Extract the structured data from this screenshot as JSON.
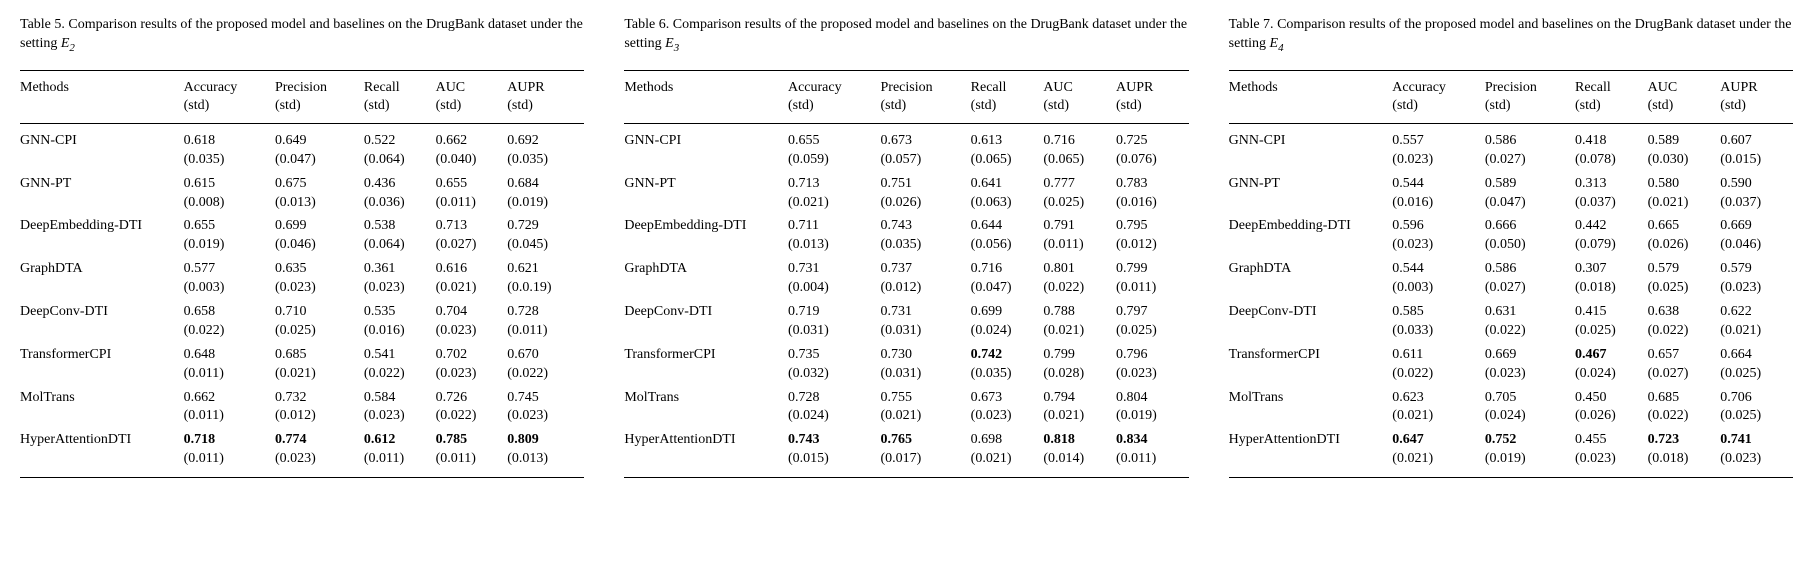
{
  "font_family": "Times New Roman, serif",
  "text_color": "#000000",
  "background_color": "#ffffff",
  "rule_color": "#000000",
  "base_fontsize_pt": 11,
  "columns": [
    "Methods",
    "Accuracy (std)",
    "Precision (std)",
    "Recall (std)",
    "AUC (std)",
    "AUPR (std)"
  ],
  "tables": [
    {
      "number": "Table 5.",
      "caption_text": "Comparison results of the proposed model and baselines on the DrugBank dataset under the setting",
      "setting_base": "E",
      "setting_sub": "2",
      "rows": [
        {
          "method": "GNN-CPI",
          "vals": [
            "0.618",
            "0.649",
            "0.522",
            "0.662",
            "0.692"
          ],
          "stds": [
            "(0.035)",
            "(0.047)",
            "(0.064)",
            "(0.040)",
            "(0.035)"
          ],
          "bold": [
            false,
            false,
            false,
            false,
            false
          ]
        },
        {
          "method": "GNN-PT",
          "vals": [
            "0.615",
            "0.675",
            "0.436",
            "0.655",
            "0.684"
          ],
          "stds": [
            "(0.008)",
            "(0.013)",
            "(0.036)",
            "(0.011)",
            "(0.019)"
          ],
          "bold": [
            false,
            false,
            false,
            false,
            false
          ]
        },
        {
          "method": "DeepEmbedding-DTI",
          "vals": [
            "0.655",
            "0.699",
            "0.538",
            "0.713",
            "0.729"
          ],
          "stds": [
            "(0.019)",
            "(0.046)",
            "(0.064)",
            "(0.027)",
            "(0.045)"
          ],
          "bold": [
            false,
            false,
            false,
            false,
            false
          ]
        },
        {
          "method": "GraphDTA",
          "vals": [
            "0.577",
            "0.635",
            "0.361",
            "0.616",
            "0.621"
          ],
          "stds": [
            "(0.003)",
            "(0.023)",
            "(0.023)",
            "(0.021)",
            "(0.0.19)"
          ],
          "bold": [
            false,
            false,
            false,
            false,
            false
          ]
        },
        {
          "method": "DeepConv-DTI",
          "vals": [
            "0.658",
            "0.710",
            "0.535",
            "0.704",
            "0.728"
          ],
          "stds": [
            "(0.022)",
            "(0.025)",
            "(0.016)",
            "(0.023)",
            "(0.011)"
          ],
          "bold": [
            false,
            false,
            false,
            false,
            false
          ]
        },
        {
          "method": "TransformerCPI",
          "vals": [
            "0.648",
            "0.685",
            "0.541",
            "0.702",
            "0.670"
          ],
          "stds": [
            "(0.011)",
            "(0.021)",
            "(0.022)",
            "(0.023)",
            "(0.022)"
          ],
          "bold": [
            false,
            false,
            false,
            false,
            false
          ]
        },
        {
          "method": "MolTrans",
          "vals": [
            "0.662",
            "0.732",
            "0.584",
            "0.726",
            "0.745"
          ],
          "stds": [
            "(0.011)",
            "(0.012)",
            "(0.023)",
            "(0.022)",
            "(0.023)"
          ],
          "bold": [
            false,
            false,
            false,
            false,
            false
          ]
        },
        {
          "method": "HyperAttentionDTI",
          "vals": [
            "0.718",
            "0.774",
            "0.612",
            "0.785",
            "0.809"
          ],
          "stds": [
            "(0.011)",
            "(0.023)",
            "(0.011)",
            "(0.011)",
            "(0.013)"
          ],
          "bold": [
            true,
            true,
            true,
            true,
            true
          ]
        }
      ]
    },
    {
      "number": "Table 6.",
      "caption_text": "Comparison results of the proposed model and baselines on the DrugBank dataset under the setting",
      "setting_base": "E",
      "setting_sub": "3",
      "rows": [
        {
          "method": "GNN-CPI",
          "vals": [
            "0.655",
            "0.673",
            "0.613",
            "0.716",
            "0.725"
          ],
          "stds": [
            "(0.059)",
            "(0.057)",
            "(0.065)",
            "(0.065)",
            "(0.076)"
          ],
          "bold": [
            false,
            false,
            false,
            false,
            false
          ]
        },
        {
          "method": "GNN-PT",
          "vals": [
            "0.713",
            "0.751",
            "0.641",
            "0.777",
            "0.783"
          ],
          "stds": [
            "(0.021)",
            "(0.026)",
            "(0.063)",
            "(0.025)",
            "(0.016)"
          ],
          "bold": [
            false,
            false,
            false,
            false,
            false
          ]
        },
        {
          "method": "DeepEmbedding-DTI",
          "vals": [
            "0.711",
            "0.743",
            "0.644",
            "0.791",
            "0.795"
          ],
          "stds": [
            "(0.013)",
            "(0.035)",
            "(0.056)",
            "(0.011)",
            "(0.012)"
          ],
          "bold": [
            false,
            false,
            false,
            false,
            false
          ]
        },
        {
          "method": "GraphDTA",
          "vals": [
            "0.731",
            "0.737",
            "0.716",
            "0.801",
            "0.799"
          ],
          "stds": [
            "(0.004)",
            "(0.012)",
            "(0.047)",
            "(0.022)",
            "(0.011)"
          ],
          "bold": [
            false,
            false,
            false,
            false,
            false
          ]
        },
        {
          "method": "DeepConv-DTI",
          "vals": [
            "0.719",
            "0.731",
            "0.699",
            "0.788",
            "0.797"
          ],
          "stds": [
            "(0.031)",
            "(0.031)",
            "(0.024)",
            "(0.021)",
            "(0.025)"
          ],
          "bold": [
            false,
            false,
            false,
            false,
            false
          ]
        },
        {
          "method": "TransformerCPI",
          "vals": [
            "0.735",
            "0.730",
            "0.742",
            "0.799",
            "0.796"
          ],
          "stds": [
            "(0.032)",
            "(0.031)",
            "(0.035)",
            "(0.028)",
            "(0.023)"
          ],
          "bold": [
            false,
            false,
            true,
            false,
            false
          ]
        },
        {
          "method": "MolTrans",
          "vals": [
            "0.728",
            "0.755",
            "0.673",
            "0.794",
            "0.804"
          ],
          "stds": [
            "(0.024)",
            "(0.021)",
            "(0.023)",
            "(0.021)",
            "(0.019)"
          ],
          "bold": [
            false,
            false,
            false,
            false,
            false
          ]
        },
        {
          "method": "HyperAttentionDTI",
          "vals": [
            "0.743",
            "0.765",
            "0.698",
            "0.818",
            "0.834"
          ],
          "stds": [
            "(0.015)",
            "(0.017)",
            "(0.021)",
            "(0.014)",
            "(0.011)"
          ],
          "bold": [
            true,
            true,
            false,
            true,
            true
          ]
        }
      ]
    },
    {
      "number": "Table 7.",
      "caption_text": "Comparison results of the proposed model and baselines on the DrugBank dataset under the setting",
      "setting_base": "E",
      "setting_sub": "4",
      "rows": [
        {
          "method": "GNN-CPI",
          "vals": [
            "0.557",
            "0.586",
            "0.418",
            "0.589",
            "0.607"
          ],
          "stds": [
            "(0.023)",
            "(0.027)",
            "(0.078)",
            "(0.030)",
            "(0.015)"
          ],
          "bold": [
            false,
            false,
            false,
            false,
            false
          ]
        },
        {
          "method": "GNN-PT",
          "vals": [
            "0.544",
            "0.589",
            "0.313",
            "0.580",
            "0.590"
          ],
          "stds": [
            "(0.016)",
            "(0.047)",
            "(0.037)",
            "(0.021)",
            "(0.037)"
          ],
          "bold": [
            false,
            false,
            false,
            false,
            false
          ]
        },
        {
          "method": "DeepEmbedding-DTI",
          "vals": [
            "0.596",
            "0.666",
            "0.442",
            "0.665",
            "0.669"
          ],
          "stds": [
            "(0.023)",
            "(0.050)",
            "(0.079)",
            "(0.026)",
            "(0.046)"
          ],
          "bold": [
            false,
            false,
            false,
            false,
            false
          ]
        },
        {
          "method": "GraphDTA",
          "vals": [
            "0.544",
            "0.586",
            "0.307",
            "0.579",
            "0.579"
          ],
          "stds": [
            "(0.003)",
            "(0.027)",
            "(0.018)",
            "(0.025)",
            "(0.023)"
          ],
          "bold": [
            false,
            false,
            false,
            false,
            false
          ]
        },
        {
          "method": "DeepConv-DTI",
          "vals": [
            "0.585",
            "0.631",
            "0.415",
            "0.638",
            "0.622"
          ],
          "stds": [
            "(0.033)",
            "(0.022)",
            "(0.025)",
            "(0.022)",
            "(0.021)"
          ],
          "bold": [
            false,
            false,
            false,
            false,
            false
          ]
        },
        {
          "method": "TransformerCPI",
          "vals": [
            "0.611",
            "0.669",
            "0.467",
            "0.657",
            "0.664"
          ],
          "stds": [
            "(0.022)",
            "(0.023)",
            "(0.024)",
            "(0.027)",
            "(0.025)"
          ],
          "bold": [
            false,
            false,
            true,
            false,
            false
          ]
        },
        {
          "method": "MolTrans",
          "vals": [
            "0.623",
            "0.705",
            "0.450",
            "0.685",
            "0.706"
          ],
          "stds": [
            "(0.021)",
            "(0.024)",
            "(0.026)",
            "(0.022)",
            "(0.025)"
          ],
          "bold": [
            false,
            false,
            false,
            false,
            false
          ]
        },
        {
          "method": "HyperAttentionDTI",
          "vals": [
            "0.647",
            "0.752",
            "0.455",
            "0.723",
            "0.741"
          ],
          "stds": [
            "(0.021)",
            "(0.019)",
            "(0.023)",
            "(0.018)",
            "(0.023)"
          ],
          "bold": [
            true,
            true,
            false,
            true,
            true
          ]
        }
      ]
    }
  ]
}
